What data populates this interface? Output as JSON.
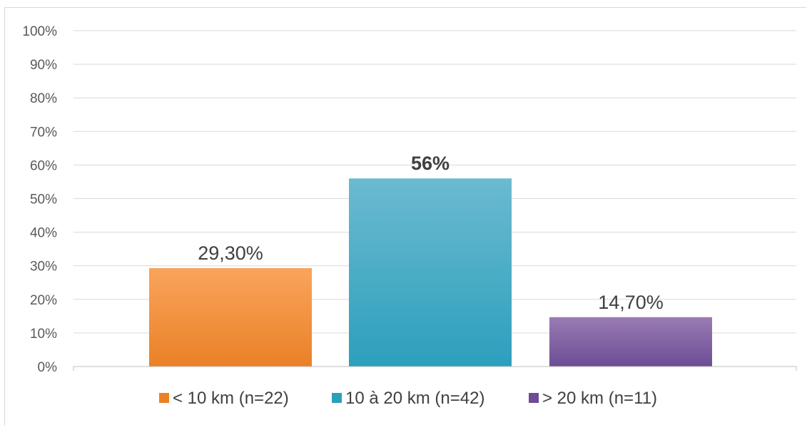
{
  "chart_data": {
    "type": "bar",
    "title": "",
    "xlabel": "",
    "ylabel": "",
    "ylim": [
      0,
      100
    ],
    "y_tick_step": 10,
    "y_tick_suffix": "%",
    "grid": true,
    "legend_position": "bottom",
    "bars": [
      {
        "legend": "< 10 km (n=22)",
        "value": 29.3,
        "label": "29,30%",
        "bold": false,
        "color_top": "#f9a45d",
        "color_bottom": "#ea8126"
      },
      {
        "legend": "10 à 20 km (n=42)",
        "value": 56,
        "label": "56%",
        "bold": true,
        "color_top": "#6bbad0",
        "color_bottom": "#2c9fbd"
      },
      {
        "legend": "> 20 km (n=11)",
        "value": 14.7,
        "label": "14,70%",
        "bold": false,
        "color_top": "#9a7cb5",
        "color_bottom": "#6d4c95"
      }
    ],
    "colors": {
      "grid": "#d9d9d9",
      "axis": "#bfbfbf",
      "tick_text": "#595959"
    }
  }
}
